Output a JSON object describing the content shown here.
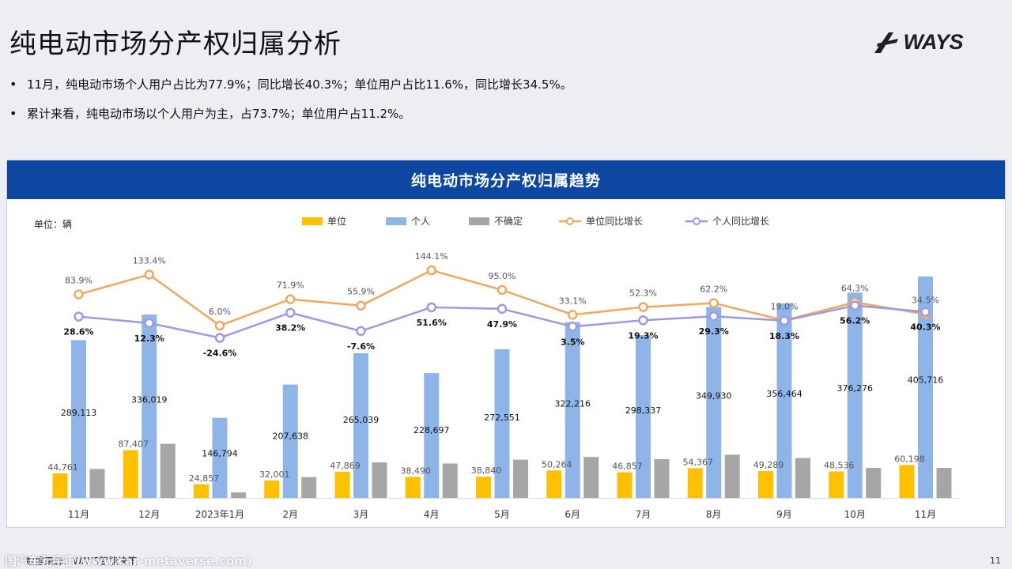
{
  "header": {
    "title": "纯电动市场分产权归属分析",
    "logo_text": "WAYS",
    "logo_icon": "ways-logo-icon"
  },
  "bullets": [
    "11月，纯电动市场个人用户占比为77.9%；同比增长40.3%；单位用户占比11.6%，同比增长34.5%。",
    "累计来看，纯电动市场以个人用户为主，占73.7%；单位用户占11.2%。"
  ],
  "panel": {
    "title": "纯电动市场分产权归属趋势",
    "unit_label": "单位：辆"
  },
  "footer": {
    "source": "数据来源：WAYS智能决策",
    "watermark": "国汽车元宇宙(www.car-metaverse.com)",
    "page_number": "11"
  },
  "colors": {
    "unit_bar": "#ffc000",
    "personal_bar": "#8fb4e8",
    "undetermined_bar": "#a6a6a6",
    "unit_line": "#f0a860",
    "personal_line": "#9a9ae6",
    "header_bg": "#0d47a1"
  },
  "chart_data": {
    "type": "bar",
    "title": "纯电动市场分产权归属趋势",
    "xlabel": "",
    "ylabel": "单位：辆",
    "ylim": [
      0,
      420000
    ],
    "ylim_growth": [
      -140,
      160
    ],
    "categories": [
      "11月",
      "12月",
      "2023年1月",
      "2月",
      "3月",
      "4月",
      "5月",
      "6月",
      "7月",
      "8月",
      "9月",
      "10月",
      "11月"
    ],
    "series": [
      {
        "name": "单位",
        "kind": "bar",
        "values": [
          44761,
          87407,
          24857,
          32001,
          47869,
          38490,
          38840,
          50264,
          46857,
          54367,
          49289,
          48536,
          60198
        ],
        "labels": [
          "44,761",
          "87,407",
          "24,857",
          "32,001",
          "47,869",
          "38,490",
          "38,840",
          "50,264",
          "46,857",
          "54,367",
          "49,289",
          "48,536",
          "60,198"
        ]
      },
      {
        "name": "个人",
        "kind": "bar",
        "values": [
          289113,
          336019,
          146794,
          207638,
          265039,
          228697,
          272551,
          322216,
          298337,
          349930,
          356464,
          376276,
          405716
        ],
        "labels": [
          "289,113",
          "336,019",
          "146,794",
          "207,638",
          "265,039",
          "228,697",
          "272,551",
          "322,216",
          "298,337",
          "349,930",
          "356,464",
          "376,276",
          "405,716"
        ]
      },
      {
        "name": "不确定",
        "kind": "bar",
        "values": [
          53000,
          99000,
          10000,
          38000,
          65000,
          63000,
          70000,
          75000,
          71000,
          79000,
          73000,
          55000,
          55000
        ]
      },
      {
        "name": "单位同比增长",
        "kind": "line",
        "values": [
          83.9,
          133.4,
          6.0,
          71.9,
          55.9,
          144.1,
          95.0,
          33.1,
          52.3,
          62.2,
          19.0,
          64.3,
          34.5
        ],
        "labels": [
          "83.9%",
          "133.4%",
          "6.0%",
          "71.9%",
          "55.9%",
          "144.1%",
          "95.0%",
          "33.1%",
          "52.3%",
          "62.2%",
          "19.0%",
          "64.3%",
          "34.5%"
        ]
      },
      {
        "name": "个人同比增长",
        "kind": "line",
        "values": [
          28.6,
          12.3,
          -24.6,
          38.2,
          -7.6,
          51.6,
          47.9,
          3.5,
          19.3,
          29.3,
          18.3,
          56.2,
          40.3
        ],
        "labels": [
          "28.6%",
          "12.3%",
          "-24.6%",
          "38.2%",
          "-7.6%",
          "51.6%",
          "47.9%",
          "3.5%",
          "19.3%",
          "29.3%",
          "18.3%",
          "56.2%",
          "40.3%"
        ]
      }
    ],
    "legend": [
      "单位",
      "个人",
      "不确定",
      "单位同比增长",
      "个人同比增长"
    ],
    "legend_position": "top-center",
    "grid": false
  }
}
